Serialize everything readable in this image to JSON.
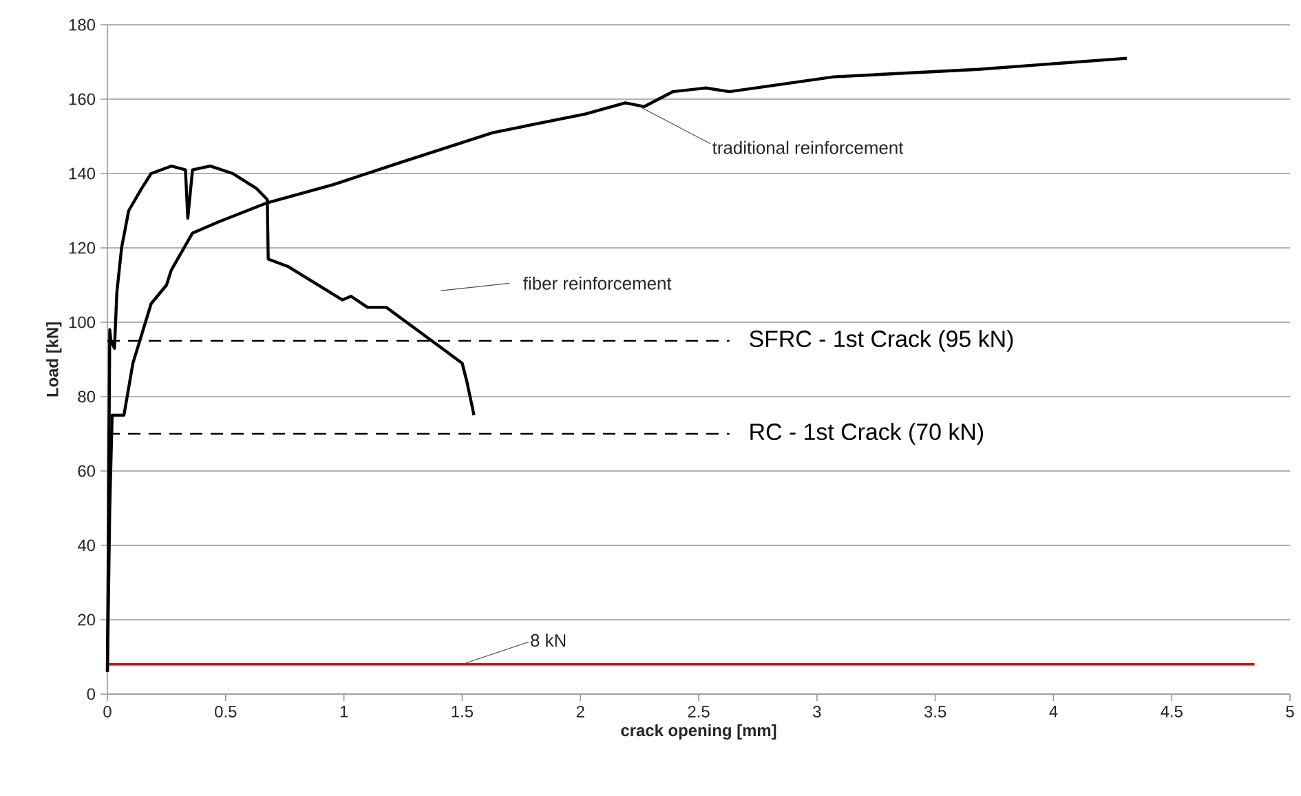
{
  "chart_data": {
    "type": "line",
    "xlabel": "crack opening  [mm]",
    "ylabel": "Load [kN]",
    "xlim": [
      0,
      5
    ],
    "ylim": [
      0,
      180
    ],
    "xticks": [
      0,
      0.5,
      1,
      1.5,
      2,
      2.5,
      3,
      3.5,
      4,
      4.5,
      5
    ],
    "yticks": [
      0,
      20,
      40,
      60,
      80,
      100,
      120,
      140,
      160,
      180
    ],
    "grid": "y",
    "marker": "none",
    "line_style": "solid",
    "series": [
      {
        "color": "#000000",
        "x": [
          0,
          0.005,
          0.01,
          0.015,
          0.03,
          0.04,
          0.06,
          0.09,
          0.145,
          0.185,
          0.27,
          0.33,
          0.34,
          0.36,
          0.435,
          0.53,
          0.63,
          0.676,
          0.68,
          0.763,
          0.994,
          1.03,
          1.1,
          1.18,
          1.5,
          1.52,
          1.55
        ],
        "values": [
          6,
          50,
          98,
          95,
          93,
          108,
          120,
          130,
          136,
          140,
          142,
          141,
          128,
          141,
          142,
          140,
          136,
          133,
          117,
          115,
          106,
          107,
          104,
          104,
          89,
          84,
          75
        ]
      },
      {
        "color": "#000000",
        "x": [
          0,
          0.01,
          0.02,
          0.07,
          0.108,
          0.185,
          0.25,
          0.27,
          0.36,
          0.47,
          0.67,
          0.955,
          1.24,
          1.63,
          2.02,
          2.19,
          2.27,
          2.39,
          2.53,
          2.63,
          3.07,
          3.68,
          4.31
        ],
        "values": [
          6,
          50,
          75,
          75,
          89,
          105,
          110,
          114,
          124,
          127,
          132,
          137,
          143,
          151,
          156,
          159,
          158,
          162,
          163,
          162,
          166,
          168,
          171
        ]
      }
    ],
    "ref_lines": [
      {
        "axis": "y",
        "value": 95,
        "label": "SFRC - 1st Crack (95 kN)",
        "color": "#000000",
        "line_style": "dashed"
      },
      {
        "axis": "y",
        "value": 70,
        "label": "RC - 1st Crack (70 kN)",
        "color": "#000000",
        "line_style": "dashed"
      },
      {
        "axis": "y",
        "value": 8,
        "label": "8 kN",
        "color": "#e00000",
        "line_style": "solid"
      }
    ],
    "annotations": [
      {
        "text": "traditional reinforcement",
        "x": 2.25,
        "y": 158
      },
      "fiber reinforcement"
    ]
  }
}
